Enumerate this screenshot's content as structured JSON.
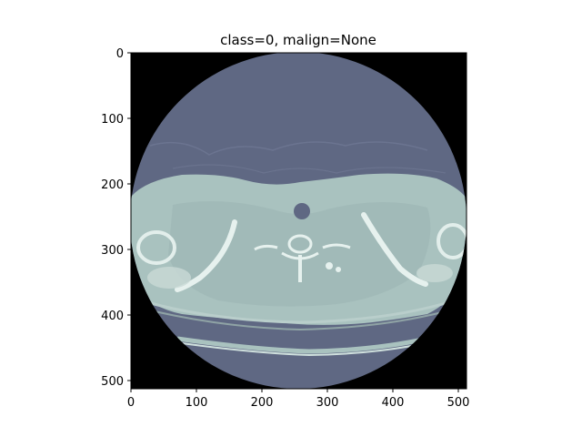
{
  "figure": {
    "title": "class=0, malign=None",
    "x_ticks": [
      "0",
      "100",
      "200",
      "300",
      "400",
      "500"
    ],
    "y_ticks": [
      "0",
      "100",
      "200",
      "300",
      "400",
      "500"
    ],
    "x_range": [
      0,
      512
    ],
    "y_range": [
      0,
      512
    ],
    "colors": {
      "background": "#000000",
      "soft_tissue": "#a9c2bf",
      "air_region": "#5f6883",
      "bone": "#e6f1ee"
    },
    "image_description_icon": "ct-axial-slice-icon"
  }
}
